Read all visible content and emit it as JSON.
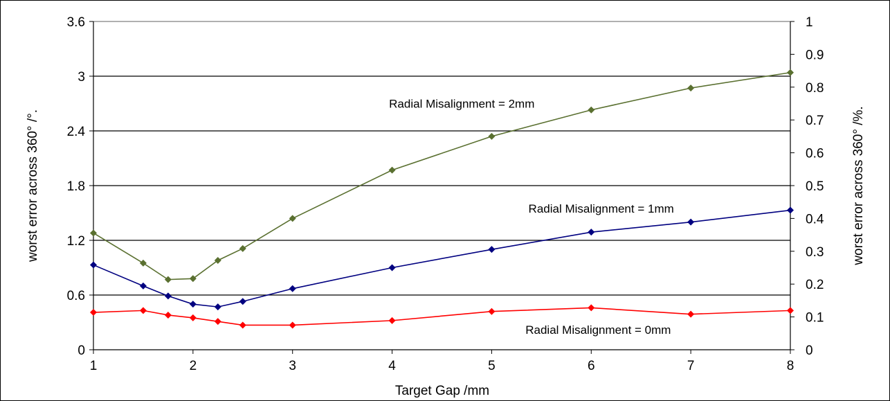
{
  "chart_data": {
    "type": "line",
    "xlabel": "Target Gap /mm",
    "ylabel": "worst error across 360° /°.",
    "y2label": "worst error across 360° /%.",
    "xlim": [
      1,
      8
    ],
    "ylim": [
      0,
      3.6
    ],
    "y2lim": [
      0,
      1
    ],
    "x_ticks": [
      "1",
      "2",
      "3",
      "4",
      "5",
      "6",
      "7",
      "8"
    ],
    "y_ticks": [
      "0",
      "0.6",
      "1.2",
      "1.8",
      "2.4",
      "3",
      "3.6"
    ],
    "y2_ticks": [
      "0",
      "0.1",
      "0.2",
      "0.3",
      "0.4",
      "0.5",
      "0.6",
      "0.7",
      "0.8",
      "0.9",
      "1"
    ],
    "grid": "horizontal",
    "series": [
      {
        "name": "Radial Misalignment = 2mm",
        "color": "#5A7030",
        "x": [
          1,
          1.5,
          1.75,
          2,
          2.25,
          2.5,
          3,
          4,
          5,
          6,
          7,
          8
        ],
        "y": [
          1.28,
          0.95,
          0.77,
          0.78,
          0.98,
          1.11,
          1.44,
          1.97,
          2.34,
          2.63,
          2.87,
          3.04
        ]
      },
      {
        "name": "Radial Misalignment = 1mm",
        "color": "#000080",
        "x": [
          1,
          1.5,
          1.75,
          2,
          2.25,
          2.5,
          3,
          4,
          5,
          6,
          7,
          8
        ],
        "y": [
          0.93,
          0.7,
          0.59,
          0.5,
          0.47,
          0.53,
          0.67,
          0.9,
          1.1,
          1.29,
          1.4,
          1.53
        ]
      },
      {
        "name": "Radial Misalignment = 0mm",
        "color": "#FF0000",
        "x": [
          1,
          1.5,
          1.75,
          2,
          2.25,
          2.5,
          3,
          4,
          5,
          6,
          7,
          8
        ],
        "y": [
          0.41,
          0.43,
          0.38,
          0.35,
          0.31,
          0.27,
          0.27,
          0.32,
          0.42,
          0.46,
          0.39,
          0.43
        ]
      }
    ],
    "annotations": [
      {
        "text": "Radial Misalignment = 2mm",
        "series": 0,
        "x": 4.7,
        "y": 2.7
      },
      {
        "text": "Radial Misalignment = 1mm",
        "series": 1,
        "x": 6.1,
        "y": 1.55
      },
      {
        "text": "Radial Misalignment = 0mm",
        "series": 2,
        "x": 6.07,
        "y": 0.22
      }
    ]
  }
}
